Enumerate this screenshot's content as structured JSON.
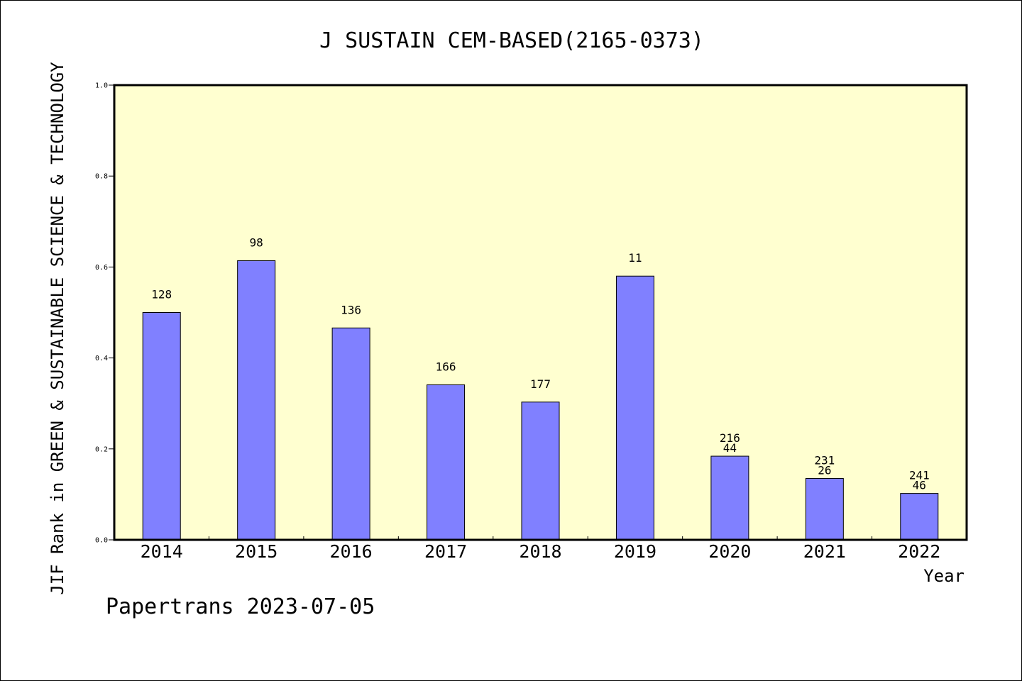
{
  "chart_data": {
    "type": "bar",
    "title": "J SUSTAIN CEM-BASED(2165-0373)",
    "xlabel": "Year",
    "ylabel": "JIF Rank in GREEN & SUSTAINABLE SCIENCE & TECHNOLOGY",
    "footer": "Papertrans 2023-07-05",
    "categories": [
      "2014",
      "2015",
      "2016",
      "2017",
      "2018",
      "2019",
      "2020",
      "2021",
      "2022"
    ],
    "values": [
      0.5,
      0.614,
      0.466,
      0.341,
      0.303,
      0.58,
      0.184,
      0.135,
      0.102
    ],
    "data_labels": [
      [
        "128"
      ],
      [
        "98"
      ],
      [
        "136"
      ],
      [
        "166"
      ],
      [
        "177"
      ],
      [
        "11"
      ],
      [
        "216",
        "44"
      ],
      [
        "231",
        "26"
      ],
      [
        "241",
        "46"
      ]
    ],
    "yticks": [
      "0.0",
      "0.2",
      "0.4",
      "0.6",
      "0.8",
      "1.0"
    ],
    "ylim": [
      0,
      1.0
    ],
    "grid": false,
    "colors": {
      "bar": "#8080ff",
      "plot_background": "#ffffd0",
      "axis": "#000000"
    }
  }
}
